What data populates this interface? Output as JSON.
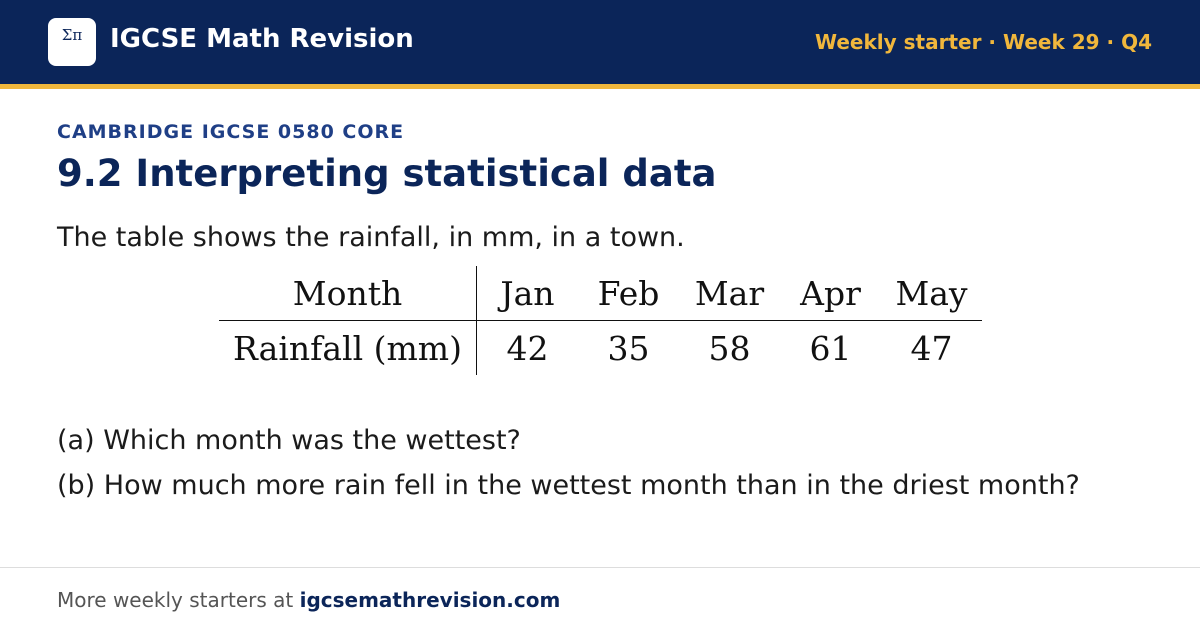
{
  "header": {
    "logo_symbol": "Σπ",
    "site_name": "IGCSE Math Revision",
    "badge": "Weekly starter · Week 29 · Q4"
  },
  "kicker": "CAMBRIDGE IGCSE 0580 CORE",
  "title": "9.2 Interpreting statistical data",
  "intro": "The table shows the rainfall, in mm, in a town.",
  "table": {
    "header": [
      "Month",
      "Jan",
      "Feb",
      "Mar",
      "Apr",
      "May"
    ],
    "rows": [
      [
        "Rainfall (mm)",
        42,
        35,
        58,
        61,
        47
      ]
    ]
  },
  "questions": [
    "(a) Which month was the wettest?",
    "(b) How much more rain fell in the wettest month than in the driest month?"
  ],
  "footer": {
    "text": "More weekly starters at",
    "link": "igcsemathrevision.com"
  }
}
